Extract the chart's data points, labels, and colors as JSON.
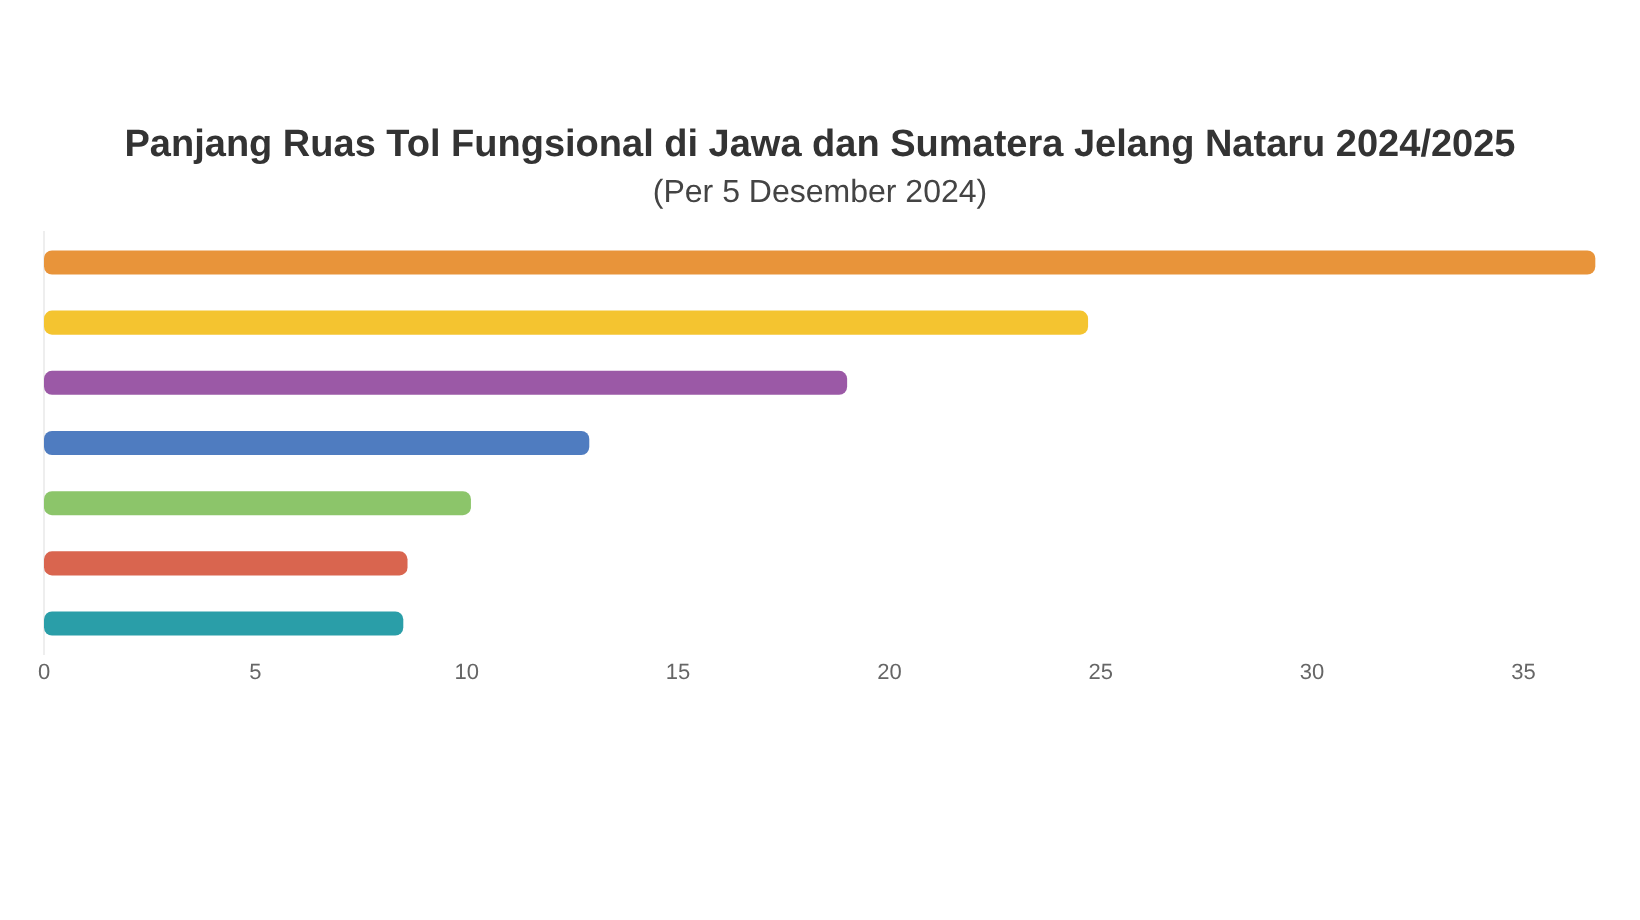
{
  "chart_data": {
    "type": "bar",
    "orientation": "horizontal",
    "title": "Panjang Ruas Tol Fungsional di Jawa dan Sumatera Jelang Nataru 2024/2025",
    "subtitle": "(Per 5 Desember 2024)",
    "categories": [
      null,
      null,
      null,
      null,
      null,
      null,
      null
    ],
    "values": [
      36.7,
      24.7,
      19.0,
      12.9,
      10.1,
      8.6,
      8.5
    ],
    "colors": [
      "#e8943a",
      "#f4c430",
      "#9b59a6",
      "#4f7cc0",
      "#8cc56a",
      "#d9654f",
      "#2a9ea8"
    ],
    "xlim": [
      0,
      37
    ],
    "xticks": [
      0,
      5,
      10,
      15,
      20,
      25,
      30,
      35
    ],
    "grid": false
  }
}
